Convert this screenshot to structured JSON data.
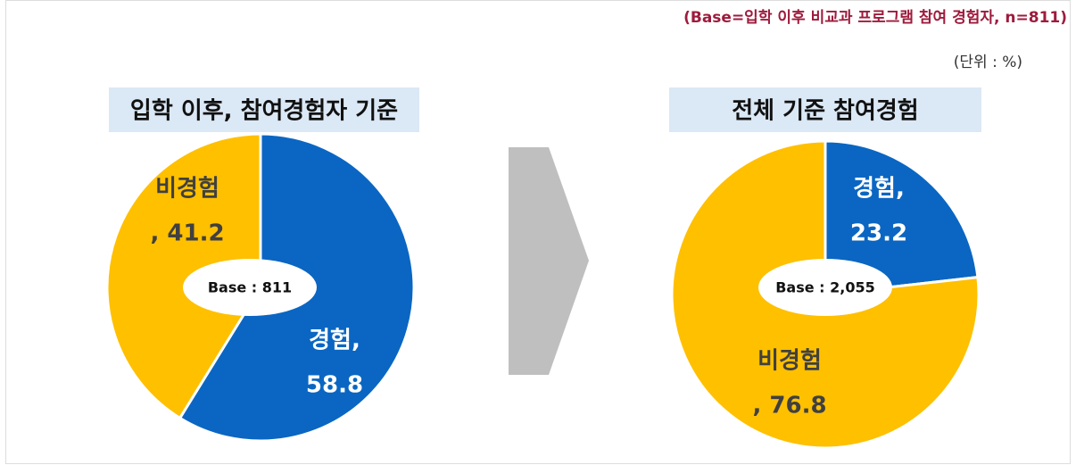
{
  "header": {
    "note": "(Base=입학 이후 비교과 프로그램 참여 경험자, n=811)",
    "unit": "(단위 : %)"
  },
  "chart_data": [
    {
      "type": "pie",
      "title": "입학 이후, 참여경험자 기준",
      "center_label": "Base : 811",
      "categories": [
        "경험,",
        "비경험"
      ],
      "values": [
        58.8,
        41.2
      ],
      "value_labels": [
        "58.8",
        ", 41.2"
      ],
      "colors": [
        "#0a66c2",
        "#ffc000"
      ]
    },
    {
      "type": "pie",
      "title": "전체 기준 참여경험",
      "center_label": "Base : 2,055",
      "categories": [
        "경험,",
        "비경험"
      ],
      "values": [
        23.2,
        76.8
      ],
      "value_labels": [
        "23.2",
        ", 76.8"
      ],
      "colors": [
        "#0a66c2",
        "#ffc000"
      ]
    }
  ]
}
